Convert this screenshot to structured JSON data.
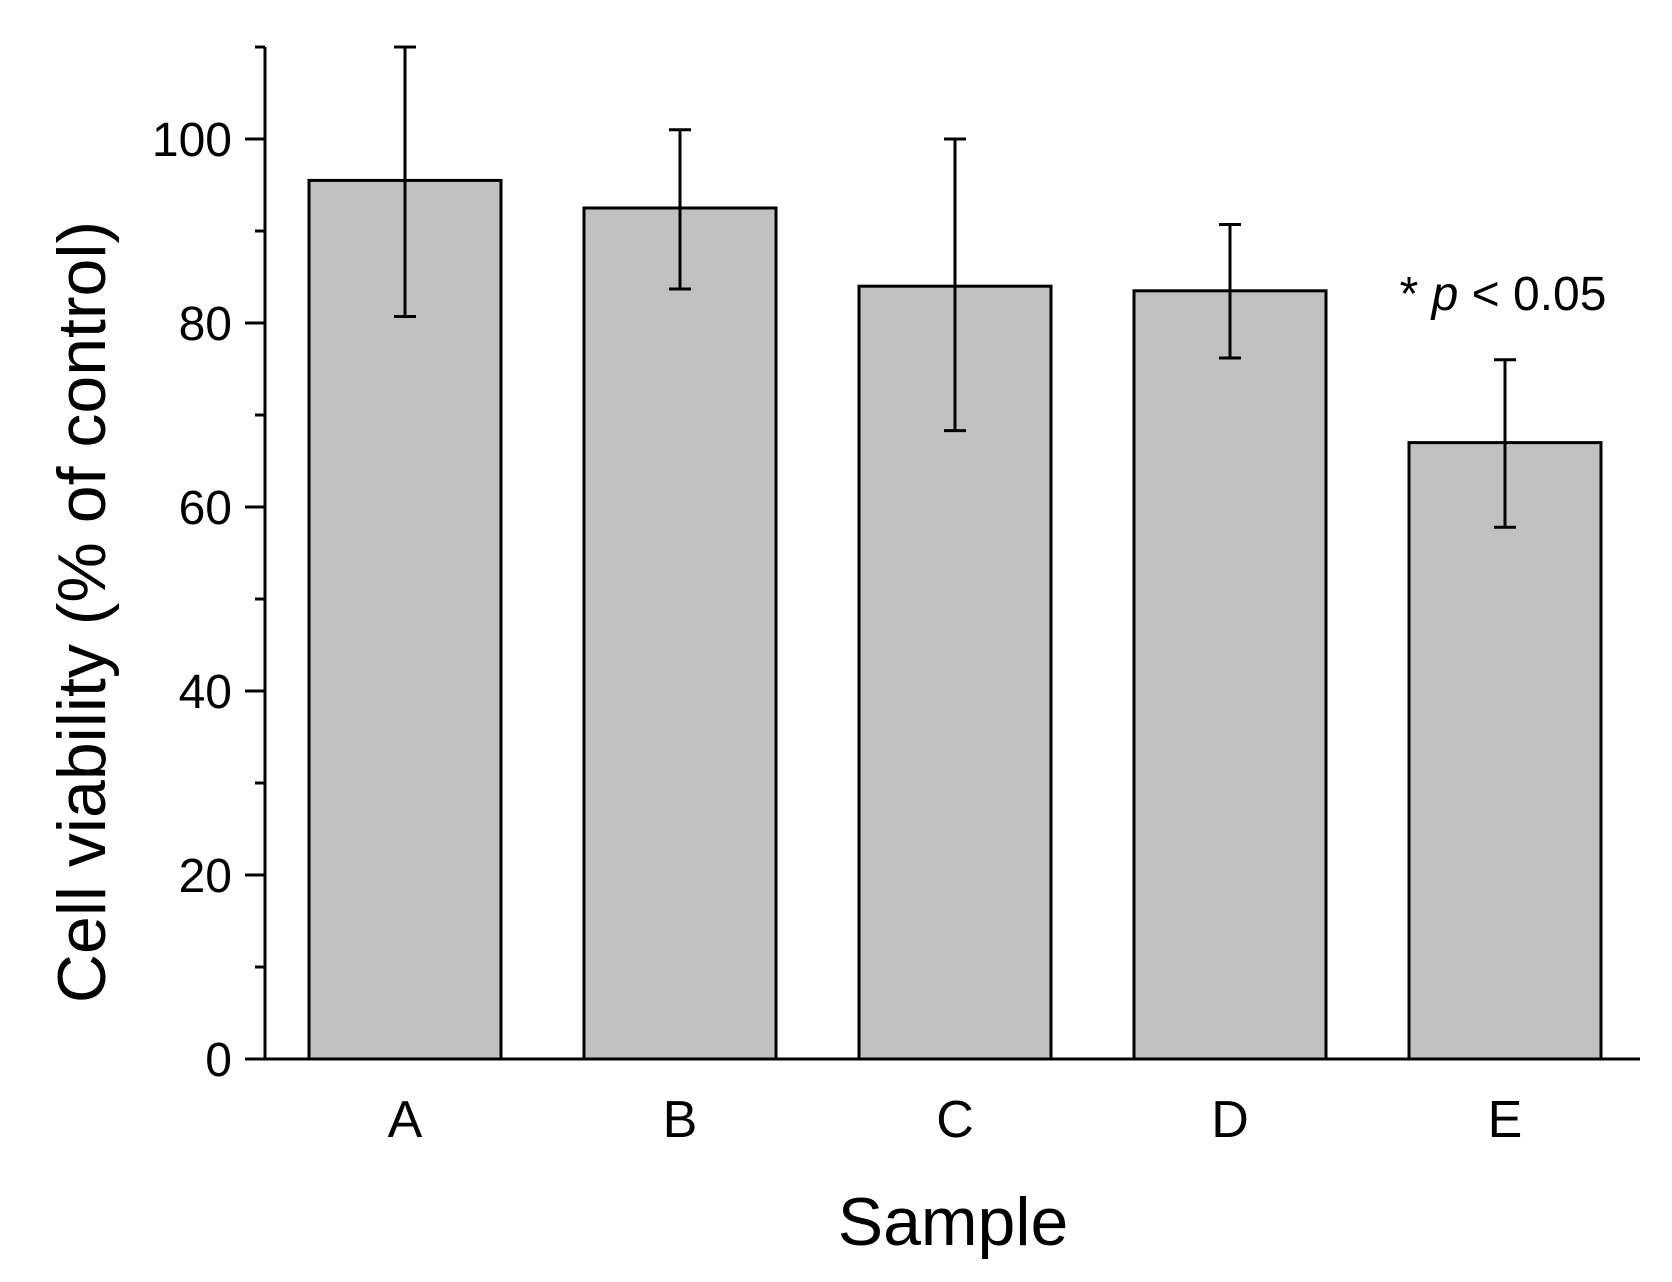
{
  "chart_data": {
    "type": "bar",
    "categories": [
      "A",
      "B",
      "C",
      "D",
      "E"
    ],
    "values": [
      95.5,
      92.5,
      84.0,
      83.5,
      67.0
    ],
    "error_low": [
      80.7,
      83.7,
      68.3,
      76.2,
      57.8
    ],
    "error_high": [
      110.0,
      101.0,
      100.0,
      90.7,
      76.0
    ],
    "xlabel": "Sample",
    "ylabel": "Cell viability (% of control)",
    "ylim": [
      0,
      110
    ],
    "yticks": [
      0,
      20,
      40,
      60,
      80,
      100
    ],
    "yminor_ticks": [
      10,
      30,
      50,
      70,
      90,
      110
    ],
    "bar_color": "#c0c0c0",
    "grid": false,
    "legend": "none",
    "annotation": {
      "prefix": "* ",
      "italic": "p",
      "suffix": " < 0.05"
    }
  }
}
